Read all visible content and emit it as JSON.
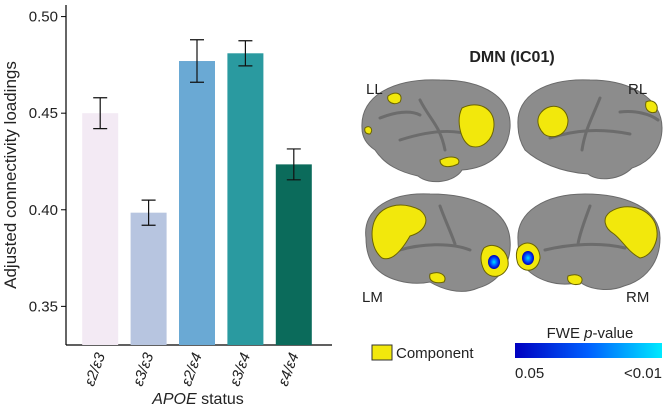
{
  "chart_data": {
    "type": "bar",
    "ylabel": "Adjusted connectivity loadings",
    "xlabel": [
      "APOE",
      " status"
    ],
    "categories": [
      "ε2/ε3",
      "ε3/ε3",
      "ε2/ε4",
      "ε3/ε4",
      "ε4/ε4"
    ],
    "values": [
      0.45,
      0.3985,
      0.477,
      0.481,
      0.4235
    ],
    "errors": [
      0.008,
      0.0065,
      0.011,
      0.0065,
      0.008
    ],
    "colors": [
      "#f3eaf4",
      "#b7c5e0",
      "#6aa9d4",
      "#2a9aa0",
      "#0b6b5b"
    ],
    "ylim": [
      0.33,
      0.506
    ],
    "yticks": [
      0.35,
      {
        "value": 0.4,
        "label": "0.40"
      },
      0.45,
      {
        "value": 0.5,
        "label": "0.50"
      }
    ],
    "grid": false
  },
  "brain_panel": {
    "title": "DMN (IC01)",
    "views": {
      "ll": "LL",
      "rl": "RL",
      "lm": "LM",
      "rm": "RM"
    },
    "legend": {
      "component": "Component",
      "scale_title": [
        "FWE ",
        "p",
        "-value"
      ],
      "scale_low": "0.05",
      "scale_high": "<0.01"
    }
  }
}
